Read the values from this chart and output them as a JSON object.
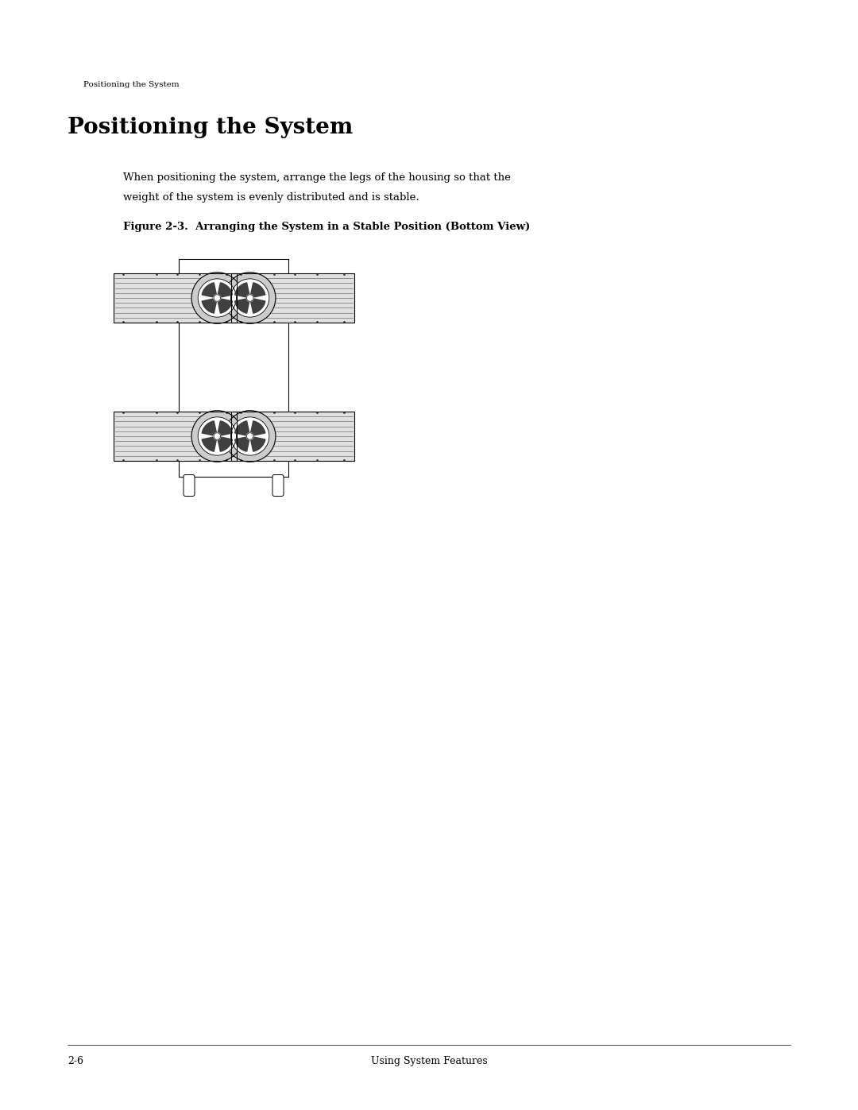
{
  "bg_color": "#ffffff",
  "page_width": 10.8,
  "page_height": 13.97,
  "header_text": "Positioning the System",
  "title_text": "Positioning the System",
  "body_text_1": "When positioning the system, arrange the legs of the housing so that the",
  "body_text_2": "weight of the system is evenly distributed and is stable.",
  "figure_caption": "Figure 2-3.  Arranging the System in a Stable Position (Bottom View)",
  "footer_left": "2-6",
  "footer_center": "Using System Features"
}
